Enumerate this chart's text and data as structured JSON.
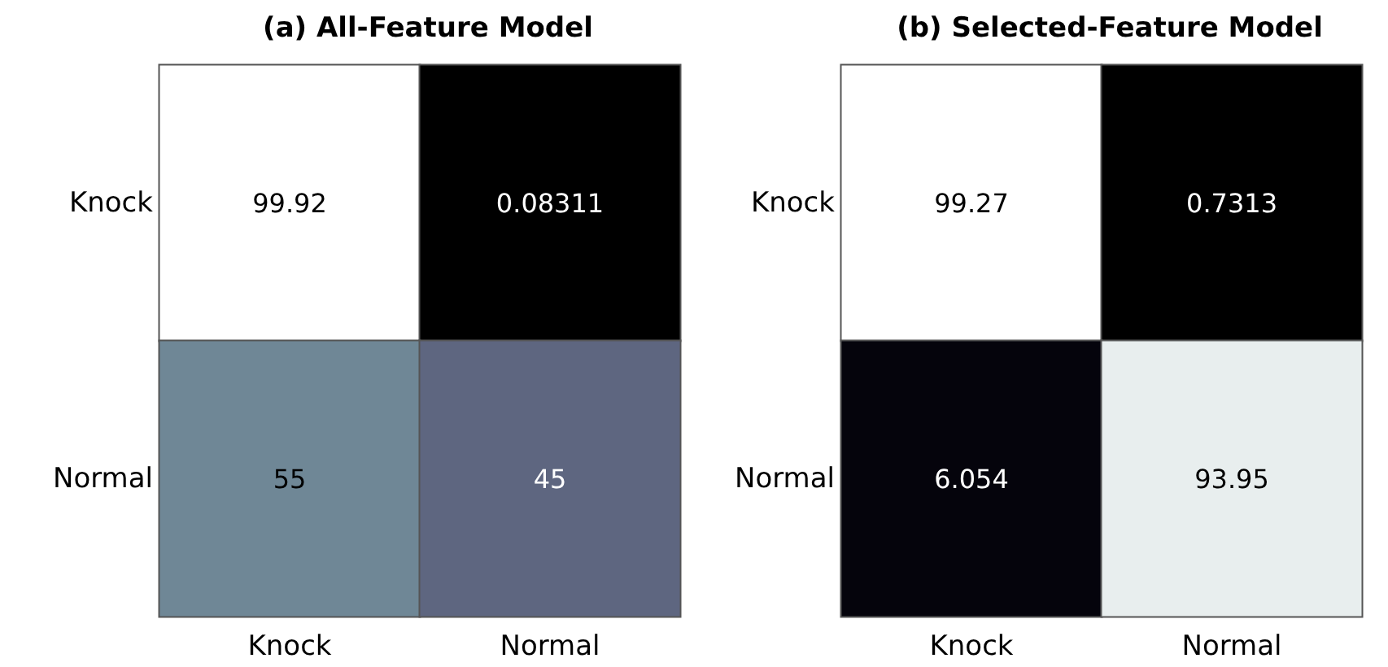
{
  "chart_data": [
    {
      "type": "heatmap",
      "title": "(a) All-Feature Model",
      "categories": [
        "Knock",
        "Normal"
      ],
      "y_categories": [
        "Knock",
        "Normal"
      ],
      "cells": [
        [
          99.92,
          0.08311
        ],
        [
          55,
          45
        ]
      ],
      "colors": [
        [
          "#ffffff",
          "#000000"
        ],
        [
          "#6f8796",
          "#5e6680"
        ]
      ],
      "data_labels": true
    },
    {
      "type": "heatmap",
      "title": "(b) Selected-Feature Model",
      "categories": [
        "Knock",
        "Normal"
      ],
      "y_categories": [
        "Knock",
        "Normal"
      ],
      "cells": [
        [
          99.27,
          0.7313
        ],
        [
          6.054,
          93.95
        ]
      ],
      "colors": [
        [
          "#ffffff",
          "#000000"
        ],
        [
          "#05040c",
          "#e8eeee"
        ]
      ],
      "data_labels": true
    }
  ]
}
